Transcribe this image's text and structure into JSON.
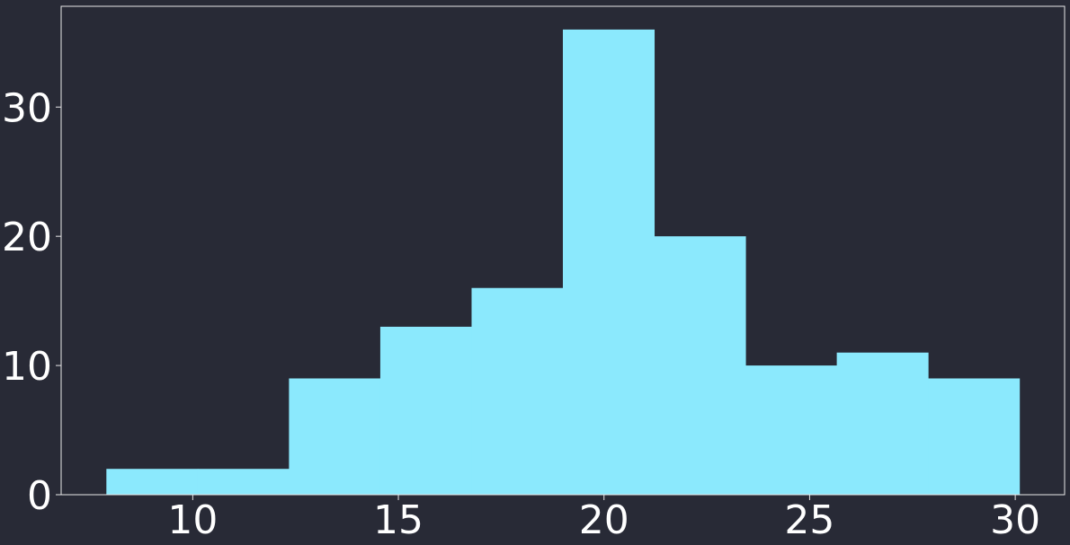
{
  "colors": {
    "background": "#282a36",
    "bar": "#8be9fd",
    "axis": "#e8e8e8",
    "text": "#ffffff"
  },
  "chart_data": {
    "type": "histogram",
    "title": "",
    "xlabel": "",
    "ylabel": "",
    "bin_edges": [
      7.9,
      10.12,
      12.34,
      14.56,
      16.78,
      19.0,
      21.22,
      23.44,
      25.66,
      27.88,
      30.1
    ],
    "counts": [
      2,
      2,
      9,
      13,
      16,
      36,
      20,
      10,
      11,
      9
    ],
    "xlim": [
      6.8,
      31.2
    ],
    "ylim": [
      0,
      37.8
    ],
    "x_ticks": [
      10,
      15,
      20,
      25,
      30
    ],
    "y_ticks": [
      0,
      10,
      20,
      30
    ],
    "x_tick_labels": [
      "10",
      "15",
      "20",
      "25",
      "30"
    ],
    "y_tick_labels": [
      "0",
      "10",
      "20",
      "30"
    ],
    "grid": false,
    "legend": "none"
  }
}
